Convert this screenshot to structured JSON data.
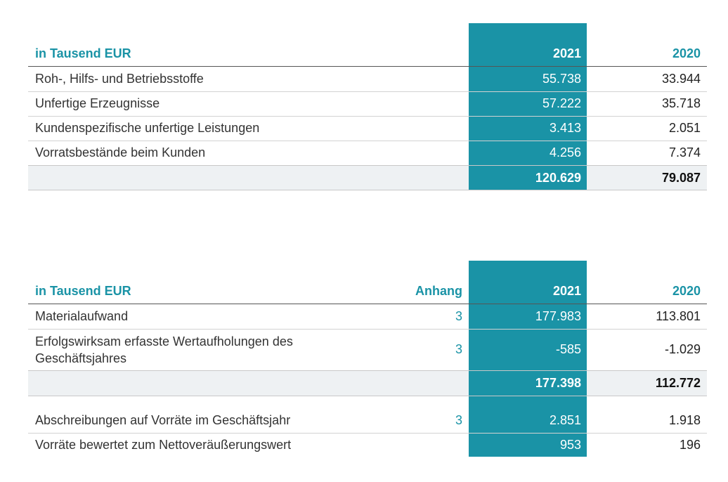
{
  "table1": {
    "header": {
      "label": "in Tausend EUR",
      "y2021": "2021",
      "y2020": "2020"
    },
    "rows": [
      {
        "label": "Roh-, Hilfs- und Betriebsstoffe",
        "y2021": "55.738",
        "y2020": "33.944"
      },
      {
        "label": "Unfertige Erzeugnisse",
        "y2021": "57.222",
        "y2020": "35.718"
      },
      {
        "label": "Kundenspezifische unfertige Leistungen",
        "y2021": "3.413",
        "y2020": "2.051"
      },
      {
        "label": "Vorratsbestände beim Kunden",
        "y2021": "4.256",
        "y2020": "7.374"
      }
    ],
    "total": {
      "y2021": "120.629",
      "y2020": "79.087"
    }
  },
  "table2": {
    "header": {
      "label": "in Tausend EUR",
      "note": "Anhang",
      "y2021": "2021",
      "y2020": "2020"
    },
    "rows": [
      {
        "label": "Materialaufwand",
        "note": "3",
        "y2021": "177.983",
        "y2020": "113.801"
      },
      {
        "label": "Erfolgswirksam erfasste Wertaufholungen des Geschäftsjahres",
        "note": "3",
        "y2021": "-585",
        "y2020": "-1.029"
      }
    ],
    "total": {
      "y2021": "177.398",
      "y2020": "112.772"
    },
    "extra_rows": [
      {
        "label": "Abschreibungen auf Vorräte im Geschäftsjahr",
        "note": "3",
        "y2021": "2.851",
        "y2020": "1.918"
      },
      {
        "label": "Vorräte bewertet zum Nettoveräußerungswert",
        "y2021": "953",
        "y2020": "196"
      }
    ]
  },
  "colors": {
    "accent": "#1a93a6",
    "total_row_bg": "#eef1f3"
  }
}
